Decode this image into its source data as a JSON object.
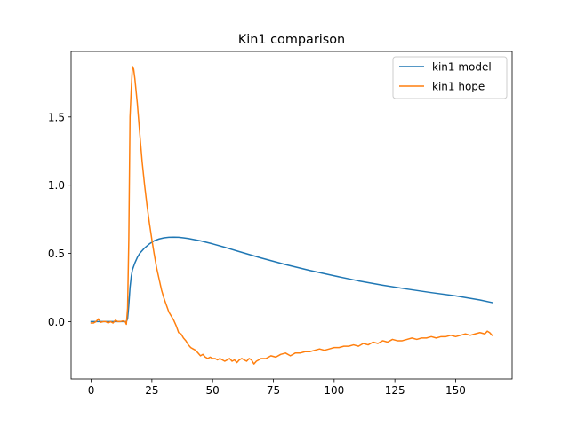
{
  "chart_data": {
    "type": "line",
    "title": "Kin1 comparison",
    "xlabel": "",
    "ylabel": "",
    "xlim": [
      -8.25,
      173.25
    ],
    "ylim": [
      -0.42,
      1.98
    ],
    "xticks": [
      0,
      25,
      50,
      75,
      100,
      125,
      150
    ],
    "yticks": [
      0.0,
      0.5,
      1.0,
      1.5
    ],
    "ytick_labels": [
      "0.0",
      "0.5",
      "1.0",
      "1.5"
    ],
    "grid": false,
    "legend_position": "upper right",
    "series": [
      {
        "name": "kin1 model",
        "color": "#1f77b4",
        "x": [
          0,
          5,
          10,
          14.5,
          15,
          15.5,
          16,
          16.5,
          17,
          18,
          19,
          20,
          22,
          24,
          26,
          28,
          30,
          32,
          34,
          36,
          38,
          40,
          45,
          50,
          55,
          60,
          65,
          70,
          80,
          90,
          100,
          110,
          120,
          130,
          140,
          150,
          160,
          165
        ],
        "values": [
          0.0,
          0.0,
          0.0,
          0.0,
          0.02,
          0.12,
          0.25,
          0.33,
          0.38,
          0.43,
          0.47,
          0.5,
          0.54,
          0.57,
          0.593,
          0.606,
          0.614,
          0.618,
          0.619,
          0.618,
          0.614,
          0.609,
          0.592,
          0.57,
          0.545,
          0.518,
          0.492,
          0.466,
          0.418,
          0.375,
          0.336,
          0.299,
          0.267,
          0.239,
          0.213,
          0.189,
          0.159,
          0.14
        ]
      },
      {
        "name": "kin1 hope",
        "color": "#ff7f0e",
        "x": [
          0,
          1,
          2,
          3,
          4,
          5,
          6,
          7,
          8,
          9,
          10,
          11,
          12,
          13,
          14,
          14.5,
          15,
          15.5,
          16,
          16.5,
          17,
          17.5,
          18,
          19,
          20,
          21,
          22,
          23,
          24,
          25,
          26,
          27,
          28,
          29,
          30,
          31,
          32,
          33,
          34,
          35,
          36,
          37,
          38,
          39,
          40,
          41,
          42,
          43,
          44,
          45,
          46,
          47,
          48,
          49,
          50,
          51,
          52,
          53,
          54,
          55,
          56,
          57,
          58,
          59,
          60,
          61,
          62,
          63,
          64,
          65,
          66,
          67,
          68,
          69,
          70,
          72,
          74,
          76,
          78,
          80,
          82,
          84,
          86,
          88,
          90,
          92,
          94,
          96,
          98,
          100,
          102,
          104,
          106,
          108,
          110,
          112,
          114,
          116,
          118,
          120,
          122,
          124,
          126,
          128,
          130,
          132,
          134,
          136,
          138,
          140,
          142,
          144,
          146,
          148,
          150,
          152,
          154,
          156,
          158,
          160,
          162,
          163,
          164,
          165
        ],
        "values": [
          -0.01,
          -0.01,
          0.0,
          0.02,
          -0.005,
          0.0,
          0.0,
          -0.01,
          0.0,
          -0.01,
          0.01,
          0.0,
          0.0,
          0.005,
          0.0,
          -0.02,
          0.1,
          0.6,
          1.5,
          1.7,
          1.87,
          1.85,
          1.78,
          1.6,
          1.38,
          1.17,
          1.0,
          0.85,
          0.72,
          0.6,
          0.49,
          0.39,
          0.31,
          0.23,
          0.17,
          0.12,
          0.07,
          0.04,
          0.01,
          -0.03,
          -0.08,
          -0.09,
          -0.12,
          -0.14,
          -0.17,
          -0.19,
          -0.2,
          -0.21,
          -0.23,
          -0.25,
          -0.24,
          -0.26,
          -0.27,
          -0.26,
          -0.27,
          -0.27,
          -0.28,
          -0.27,
          -0.28,
          -0.29,
          -0.28,
          -0.27,
          -0.29,
          -0.28,
          -0.3,
          -0.28,
          -0.27,
          -0.28,
          -0.29,
          -0.27,
          -0.28,
          -0.31,
          -0.29,
          -0.28,
          -0.27,
          -0.27,
          -0.25,
          -0.26,
          -0.24,
          -0.23,
          -0.25,
          -0.23,
          -0.23,
          -0.22,
          -0.22,
          -0.21,
          -0.2,
          -0.21,
          -0.2,
          -0.19,
          -0.19,
          -0.18,
          -0.18,
          -0.17,
          -0.18,
          -0.16,
          -0.17,
          -0.15,
          -0.16,
          -0.14,
          -0.15,
          -0.13,
          -0.14,
          -0.14,
          -0.13,
          -0.12,
          -0.13,
          -0.12,
          -0.12,
          -0.11,
          -0.12,
          -0.11,
          -0.11,
          -0.1,
          -0.11,
          -0.1,
          -0.09,
          -0.1,
          -0.09,
          -0.08,
          -0.09,
          -0.07,
          -0.08,
          -0.1
        ]
      }
    ]
  }
}
